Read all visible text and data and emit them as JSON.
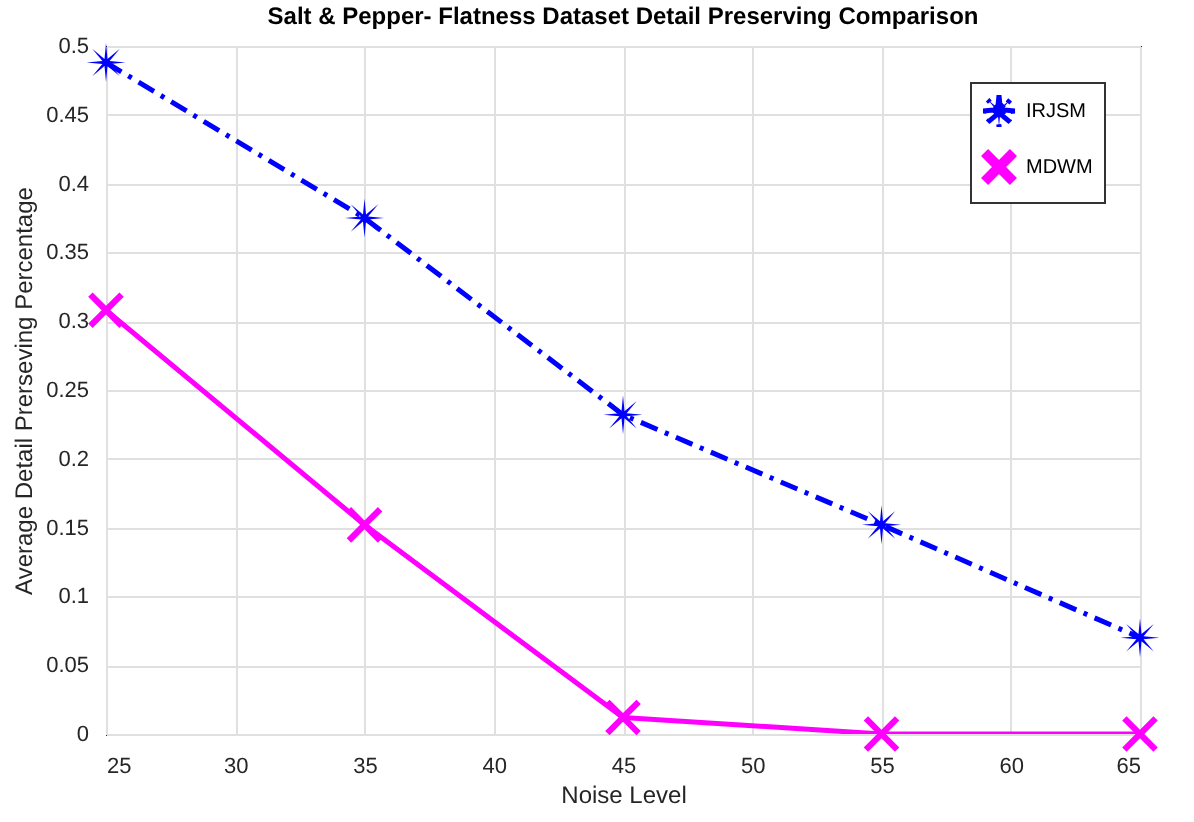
{
  "chart_data": {
    "type": "line",
    "title": "Salt & Pepper- Flatness Dataset Detail Preserving Comparison",
    "xlabel": "Noise Level",
    "ylabel": "Average Detail Prerseving Percentage",
    "x": [
      25,
      35,
      45,
      55,
      65
    ],
    "series": [
      {
        "name": "IRJSM",
        "color": "#0000ff",
        "marker": "star",
        "line_style": "dashed",
        "values": [
          0.488,
          0.375,
          0.232,
          0.152,
          0.07
        ]
      },
      {
        "name": "MDWM",
        "color": "#ff00ff",
        "marker": "cross",
        "line_style": "solid",
        "values": [
          0.308,
          0.152,
          0.012,
          0,
          0
        ]
      }
    ],
    "xlim": [
      25,
      65
    ],
    "xticks": [
      25,
      30,
      35,
      40,
      45,
      50,
      55,
      60,
      65
    ],
    "ylim": [
      0,
      0.5
    ],
    "yticks": [
      0,
      0.05,
      0.1,
      0.15,
      0.2,
      0.25,
      0.3,
      0.35,
      0.4,
      0.45,
      0.5
    ],
    "grid": true,
    "legend": "top right"
  }
}
